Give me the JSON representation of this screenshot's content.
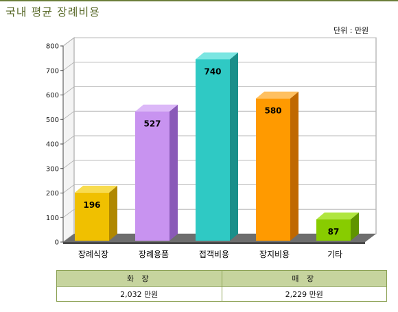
{
  "title": "국내 평균 장례비용",
  "unit_label": "단위 : 만원",
  "colors": {
    "accent": "#5a6a2a",
    "bar_front": [
      "#f0c000",
      "#c893f0",
      "#2fc9c4",
      "#ff9a00",
      "#88cc00"
    ],
    "bar_side": [
      "#b08800",
      "#8a5ab8",
      "#1a8f8a",
      "#c06800",
      "#5f9400"
    ],
    "bar_top": [
      "#f8dc50",
      "#dcb8f8",
      "#7be6e2",
      "#ffc060",
      "#b0e640"
    ]
  },
  "chart_data": {
    "type": "bar",
    "categories": [
      "장례식장",
      "장례용품",
      "접객비용",
      "장지비용",
      "기타"
    ],
    "values": [
      196,
      527,
      740,
      580,
      87
    ],
    "data_labels": [
      "196",
      "527",
      "740",
      "580",
      "87"
    ],
    "xlabel": "",
    "ylabel": "",
    "ylim": [
      0,
      800
    ],
    "yticks": [
      0,
      100,
      200,
      300,
      400,
      500,
      600,
      700,
      800
    ],
    "grid": true,
    "legend": "none"
  },
  "summary_table": {
    "headers": [
      "화 장",
      "매 장"
    ],
    "values": [
      "2,032 만원",
      "2,229 만원"
    ]
  }
}
